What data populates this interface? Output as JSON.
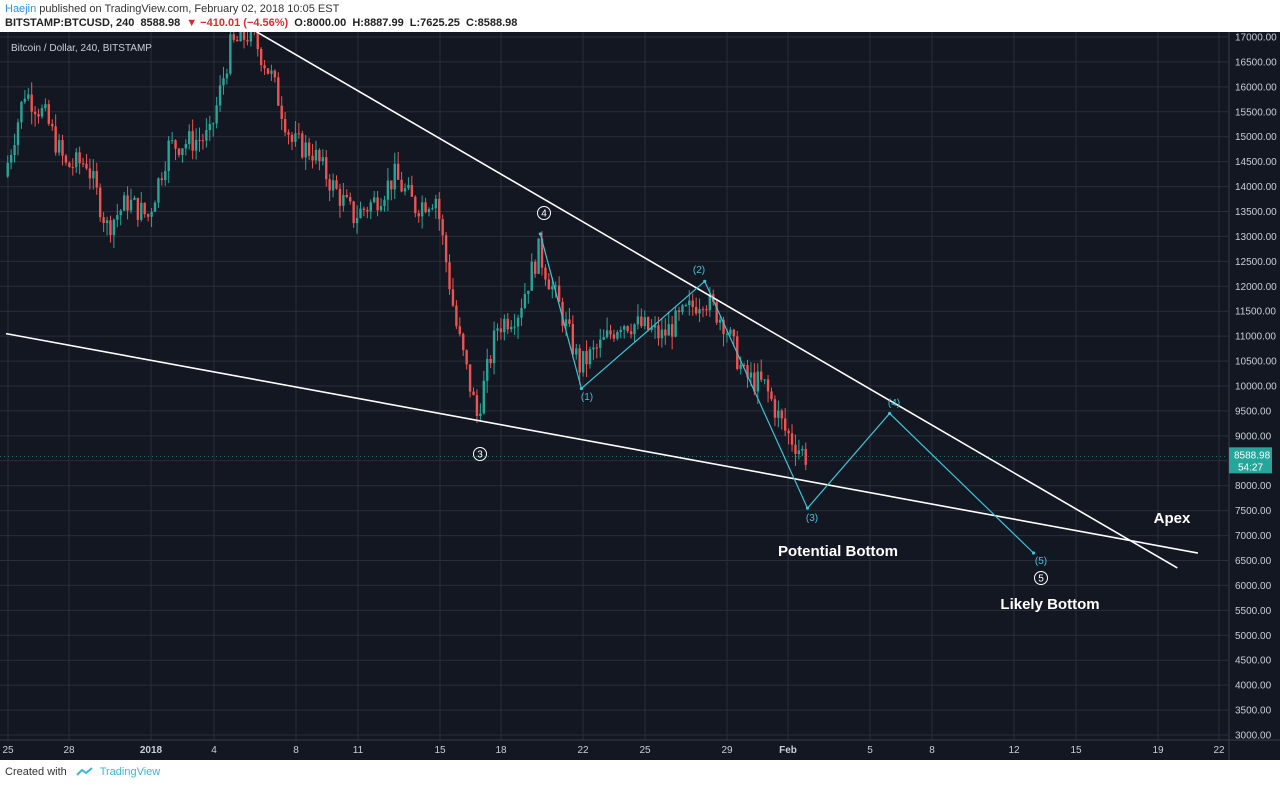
{
  "header": {
    "author": "Haejin",
    "published": " published on TradingView.com, February 02, 2018 10:05 EST",
    "symbol": "BITSTAMP:BTCUSD, 240",
    "last": "8588.98",
    "change": "−410.01 (−4.56%)",
    "open": "O:8000.00",
    "high": "H:8887.99",
    "low": "L:7625.25",
    "close": "C:8588.98"
  },
  "footer": {
    "created_with": "Created with",
    "brand": "TradingView"
  },
  "colors": {
    "background": "#131722",
    "grid": "#2a2e39",
    "up": "#26a69a",
    "down": "#ef5350",
    "trendline": "#ffffff",
    "wave": "#3bc3d6",
    "price_tag": "#26a69a"
  },
  "chart_data": {
    "type": "candlestick",
    "title": "Bitcoin / Dollar, 240, BITSTAMP",
    "ylim": [
      2900,
      17100
    ],
    "ytick_step": 500,
    "x_ticks": [
      "25",
      "28",
      "2018",
      "4",
      "8",
      "11",
      "15",
      "18",
      "22",
      "25",
      "29",
      "Feb",
      "5",
      "8",
      "12",
      "15",
      "19",
      "22"
    ],
    "last_price": "8588.98",
    "countdown": "54:27",
    "price_path": [
      [
        "Dec 25",
        14200
      ],
      [
        "Dec 26",
        15900
      ],
      [
        "Dec 27",
        15400
      ],
      [
        "Dec 28",
        14400
      ],
      [
        "Dec 29",
        14500
      ],
      [
        "Dec 30",
        13200
      ],
      [
        "Dec 31",
        13700
      ],
      [
        "Jan 01",
        13400
      ],
      [
        "Jan 02",
        14800
      ],
      [
        "Jan 03",
        14900
      ],
      [
        "Jan 04",
        15000
      ],
      [
        "Jan 05",
        16800
      ],
      [
        "Jan 06",
        17100
      ],
      [
        "Jan 07",
        16200
      ],
      [
        "Jan 08",
        14900
      ],
      [
        "Jan 09",
        14700
      ],
      [
        "Jan 10",
        14000
      ],
      [
        "Jan 11",
        13400
      ],
      [
        "Jan 12",
        13700
      ],
      [
        "Jan 13",
        14200
      ],
      [
        "Jan 14",
        13600
      ],
      [
        "Jan 15",
        13800
      ],
      [
        "Jan 16",
        11200
      ],
      [
        "Jan 17",
        9400
      ],
      [
        "Jan 18",
        11200
      ],
      [
        "Jan 19",
        11500
      ],
      [
        "Jan 20",
        12700
      ],
      [
        "Jan 21",
        11600
      ],
      [
        "Jan 22",
        10400
      ],
      [
        "Jan 23",
        10800
      ],
      [
        "Jan 24",
        11300
      ],
      [
        "Jan 25",
        11200
      ],
      [
        "Jan 26",
        11000
      ],
      [
        "Jan 27",
        11400
      ],
      [
        "Jan 28",
        11800
      ],
      [
        "Jan 29",
        11300
      ],
      [
        "Jan 30",
        10200
      ],
      [
        "Jan 31",
        10000
      ],
      [
        "Feb 01",
        9100
      ],
      [
        "Feb 02",
        8589
      ]
    ],
    "trendlines": [
      {
        "name": "upper",
        "from": [
          "Jan 06",
          17150
        ],
        "to": [
          "Feb 20",
          6350
        ]
      },
      {
        "name": "lower",
        "from": [
          "Dec 25",
          11050
        ],
        "to": [
          "Feb 21",
          6650
        ]
      }
    ],
    "wave_path": [
      [
        "Jan 20",
        13050
      ],
      [
        "Jan 22",
        9950
      ],
      [
        "Jan 28",
        12100
      ],
      [
        "Feb 02",
        7550
      ],
      [
        "Feb 06",
        9450
      ],
      [
        "Feb 13",
        6650
      ]
    ],
    "annotations": {
      "wave_labels": [
        "(1)",
        "(2)",
        "(3)",
        "(4)",
        "(5)"
      ],
      "circle_labels": [
        "3",
        "4",
        "5"
      ],
      "potential_bottom": "Potential Bottom",
      "likely_bottom": "Likely Bottom",
      "apex": "Apex"
    }
  }
}
